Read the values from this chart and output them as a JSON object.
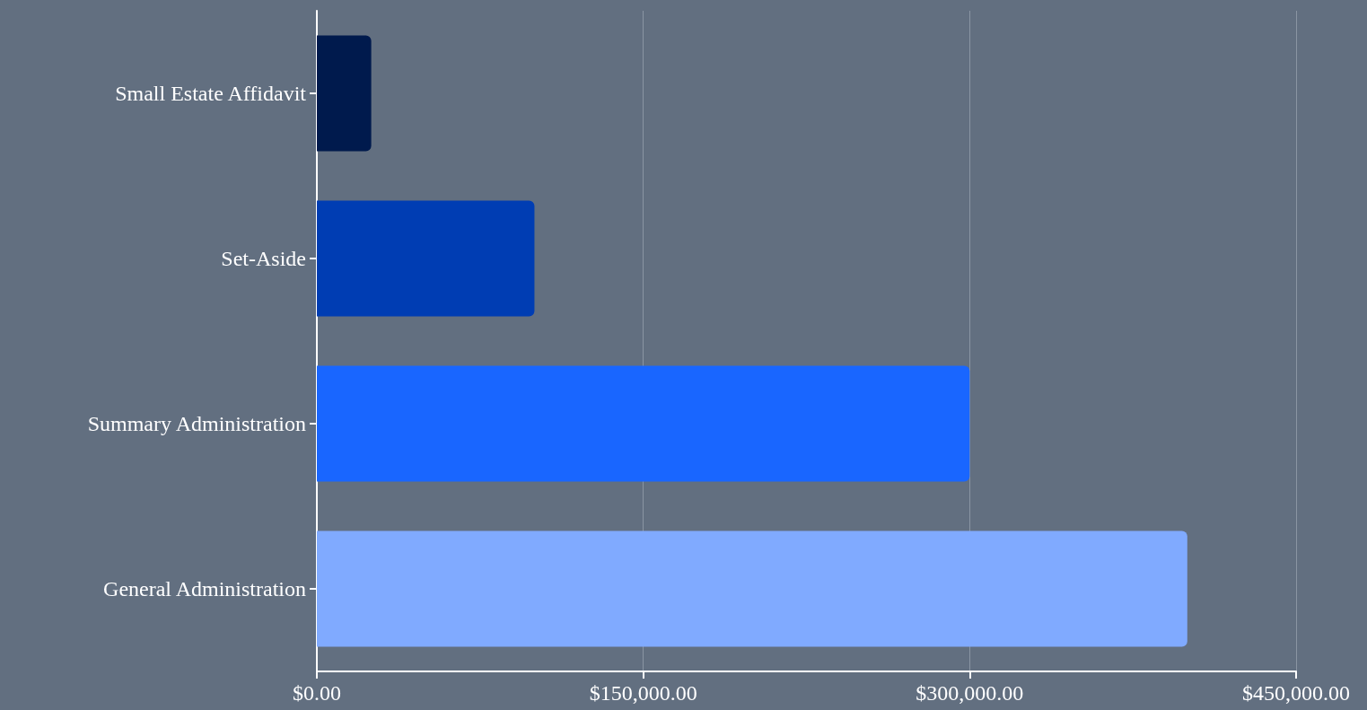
{
  "chart_data": {
    "type": "bar",
    "orientation": "horizontal",
    "categories": [
      "Small Estate Affidavit",
      "Set-Aside",
      "Summary Administration",
      "General Administration"
    ],
    "values": [
      25000,
      100000,
      300000,
      400000
    ],
    "colors": [
      "#001a4d",
      "#003db3",
      "#1966ff",
      "#80aaff"
    ],
    "xlim": [
      0,
      450000
    ],
    "xticks": [
      {
        "value": 0,
        "label": "$0.00"
      },
      {
        "value": 150000,
        "label": "$150,000.00"
      },
      {
        "value": 300000,
        "label": "$300,000.00"
      },
      {
        "value": 450000,
        "label": "$450,000.00"
      }
    ],
    "grid": "x"
  }
}
